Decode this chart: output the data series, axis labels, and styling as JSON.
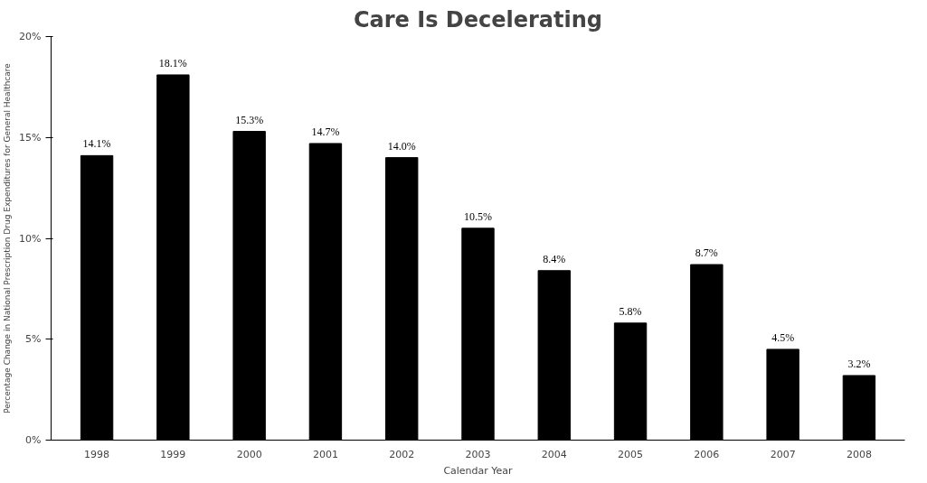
{
  "chart_data": {
    "type": "bar",
    "title": "Care Is Decelerating",
    "xlabel": "Calendar Year",
    "ylabel": "Percentage Change in National Prescription Drug Expenditures for General Healthcare",
    "categories": [
      "1998",
      "1999",
      "2000",
      "2001",
      "2002",
      "2003",
      "2004",
      "2005",
      "2006",
      "2007",
      "2008"
    ],
    "values": [
      14.1,
      18.1,
      15.3,
      14.7,
      14.0,
      10.5,
      8.4,
      5.8,
      8.7,
      4.5,
      3.2
    ],
    "value_labels": [
      "14.1%",
      "18.1%",
      "15.3%",
      "14.7%",
      "14.0%",
      "10.5%",
      "8.4%",
      "5.8%",
      "8.7%",
      "4.5%",
      "3.2%"
    ],
    "color": "#000000",
    "ylim": [
      0,
      20
    ],
    "yticks": [
      {
        "value": 0,
        "label": "0%"
      },
      {
        "value": 5,
        "label": "5%"
      },
      {
        "value": 10,
        "label": "10%"
      },
      {
        "value": 15,
        "label": "15%"
      },
      {
        "value": 20,
        "label": "20%"
      }
    ],
    "grid": false
  }
}
